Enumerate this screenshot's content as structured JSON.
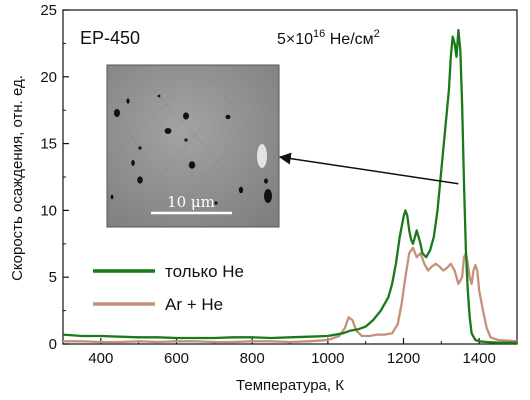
{
  "chart_data": {
    "type": "line",
    "title": "",
    "annotations": {
      "sample": "EP-450",
      "dose_prefix": "5×10",
      "dose_exponent": "16",
      "dose_unit": " He/см",
      "dose_unit_exponent": "2"
    },
    "xlabel": "Температура, К",
    "ylabel": "Скорость осаждения, отн. ед.",
    "xlim": [
      300,
      1500
    ],
    "ylim": [
      0,
      25
    ],
    "x_ticks": [
      400,
      600,
      800,
      1000,
      1200,
      1400
    ],
    "y_ticks": [
      0,
      5,
      10,
      15,
      20,
      25
    ],
    "x_tick_labels": [
      "400",
      "600",
      "800",
      "1000",
      "1200",
      "1400"
    ],
    "y_tick_labels": [
      "0",
      "5",
      "10",
      "15",
      "20",
      "25"
    ],
    "grid": false,
    "legend_position": "lower-left",
    "inset": {
      "scale_label": "10 μm",
      "arrow_target": {
        "x": 1345,
        "y": 12
      }
    },
    "series": [
      {
        "name": "только He",
        "color": "#1a7a1a",
        "x": [
          300,
          350,
          400,
          450,
          500,
          550,
          600,
          650,
          700,
          750,
          800,
          850,
          900,
          950,
          1000,
          1040,
          1060,
          1080,
          1100,
          1120,
          1140,
          1160,
          1170,
          1180,
          1190,
          1200,
          1205,
          1210,
          1215,
          1220,
          1225,
          1230,
          1235,
          1240,
          1245,
          1250,
          1260,
          1270,
          1280,
          1290,
          1300,
          1310,
          1320,
          1325,
          1330,
          1335,
          1340,
          1345,
          1350,
          1355,
          1360,
          1365,
          1370,
          1375,
          1380,
          1390,
          1400,
          1420,
          1450,
          1500
        ],
        "y": [
          0.7,
          0.6,
          0.6,
          0.55,
          0.5,
          0.5,
          0.45,
          0.45,
          0.45,
          0.5,
          0.5,
          0.45,
          0.5,
          0.55,
          0.6,
          0.8,
          1.0,
          1.1,
          1.3,
          1.8,
          2.5,
          3.5,
          4.5,
          6.0,
          8.0,
          9.5,
          10.0,
          9.6,
          8.5,
          7.8,
          7.5,
          8.0,
          8.5,
          8.0,
          7.5,
          6.8,
          6.5,
          7.0,
          8.0,
          10.0,
          13.0,
          16.0,
          19.0,
          21.5,
          23.0,
          22.5,
          21.5,
          23.5,
          22.0,
          18.0,
          12.0,
          7.0,
          4.0,
          2.0,
          0.8,
          0.3,
          0.2,
          0.15,
          0.1,
          0.1
        ]
      },
      {
        "name": "Ar + He",
        "color": "#c4907a",
        "x": [
          300,
          350,
          400,
          450,
          500,
          550,
          600,
          650,
          700,
          750,
          800,
          850,
          900,
          950,
          1000,
          1030,
          1045,
          1055,
          1065,
          1075,
          1090,
          1110,
          1130,
          1150,
          1170,
          1185,
          1195,
          1205,
          1215,
          1225,
          1235,
          1245,
          1255,
          1265,
          1275,
          1285,
          1295,
          1305,
          1315,
          1325,
          1335,
          1345,
          1355,
          1360,
          1365,
          1370,
          1375,
          1380,
          1385,
          1390,
          1395,
          1400,
          1410,
          1420,
          1430,
          1450,
          1500
        ],
        "y": [
          0.2,
          0.2,
          0.15,
          0.15,
          0.2,
          0.15,
          0.2,
          0.2,
          0.15,
          0.15,
          0.2,
          0.2,
          0.15,
          0.2,
          0.3,
          0.6,
          1.2,
          2.0,
          1.8,
          1.0,
          0.6,
          0.6,
          0.7,
          0.7,
          0.8,
          1.5,
          3.0,
          5.0,
          6.8,
          7.2,
          6.5,
          6.8,
          6.0,
          5.5,
          5.8,
          6.0,
          5.8,
          5.5,
          5.7,
          6.0,
          5.5,
          4.5,
          5.0,
          6.5,
          6.8,
          6.0,
          5.0,
          4.5,
          5.5,
          5.9,
          5.5,
          4.0,
          2.5,
          1.2,
          0.5,
          0.3,
          0.2
        ]
      }
    ]
  }
}
